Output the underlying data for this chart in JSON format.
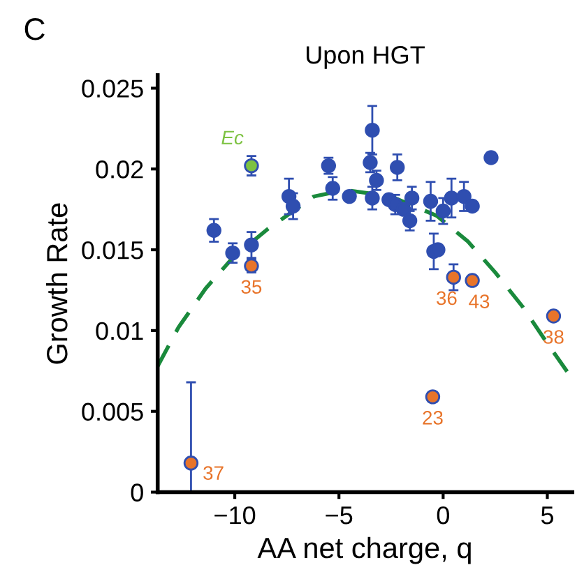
{
  "chart_data": {
    "type": "scatter",
    "title": "Upon HGT",
    "xlabel": "AA net charge, q",
    "ylabel": "Growth Rate",
    "annotations": [
      "C",
      {
        "text": "Ec",
        "x": -9.2,
        "y": 0.0202
      },
      {
        "text": "35",
        "x": -9.2,
        "y": 0.014
      },
      {
        "text": "37",
        "x": -12.1,
        "y": 0.0018
      },
      {
        "text": "23",
        "x": -0.5,
        "y": 0.0059
      },
      {
        "text": "36",
        "x": 0.5,
        "y": 0.0133
      },
      {
        "text": "43",
        "x": 1.4,
        "y": 0.0131
      },
      {
        "text": "38",
        "x": 5.3,
        "y": 0.0109
      }
    ],
    "series": [
      {
        "type": "line",
        "color": "#1a8a3c",
        "line_style": "dashed",
        "marker": "none",
        "x": [
          -13.7,
          -12.7,
          -11.4,
          -10.1,
          -8.4,
          -6.2,
          -4.7,
          -2.5,
          -0.3,
          1.2,
          2.5,
          3.8,
          4.9,
          6.2
        ],
        "values": [
          0.0078,
          0.0102,
          0.0126,
          0.0145,
          0.0163,
          0.0183,
          0.0187,
          0.0183,
          0.0171,
          0.0155,
          0.0136,
          0.0115,
          0.0094,
          0.007
        ]
      },
      {
        "color": "#2f4eb0",
        "x": [
          -11.0,
          -10.1,
          -9.2,
          -7.4,
          -7.2,
          -5.5,
          -5.3,
          -4.5,
          -3.4,
          -3.5,
          -3.2,
          -3.4,
          -2.2,
          -2.6,
          -2.3,
          -1.9,
          -1.6,
          -1.5,
          -0.6,
          0.0,
          0.4,
          1.0,
          1.4,
          -0.45,
          -0.25,
          2.3
        ],
        "values": [
          0.0162,
          0.0148,
          0.0153,
          0.0183,
          0.0177,
          0.0202,
          0.0188,
          0.0183,
          0.0224,
          0.0204,
          0.0193,
          0.0182,
          0.0201,
          0.0181,
          0.0178,
          0.0175,
          0.0168,
          0.0182,
          0.018,
          0.0174,
          0.0182,
          0.0183,
          0.0177,
          0.0149,
          0.015,
          0.0207
        ],
        "errors": [
          0.0007,
          0.0006,
          0.0008,
          0.0011,
          0.0008,
          0.0005,
          0.0007,
          null,
          0.0015,
          0.0006,
          0.0006,
          0.0007,
          0.0008,
          null,
          0.0006,
          null,
          0.0006,
          0.0007,
          0.0012,
          0.0008,
          0.0012,
          0.0009,
          null,
          0.0011,
          null,
          0.0003
        ]
      },
      {
        "color": "#e8742a",
        "x": [
          -9.2,
          -12.1,
          -0.5,
          0.5,
          1.4,
          5.3
        ],
        "values": [
          0.014,
          0.0018,
          0.0059,
          0.0133,
          0.0131,
          0.0109
        ],
        "errors": [
          0.0004,
          [
            0.0,
            0.0068
          ],
          0.0003,
          0.0008,
          null,
          null
        ]
      },
      {
        "color": "#7dc242",
        "x": [
          -9.2
        ],
        "values": [
          0.0202
        ],
        "errors": [
          0.0006
        ]
      }
    ],
    "marker": "circle",
    "grid": false,
    "legend": false,
    "xlim": [
      -13.7,
      6.2
    ],
    "ylim": [
      0,
      0.0258
    ],
    "xticks": [
      {
        "value": -10,
        "label": "−10"
      },
      {
        "value": -5,
        "label": "−5"
      },
      0,
      5
    ],
    "yticks": [
      0,
      0.005,
      0.01,
      0.015,
      0.02,
      0.025
    ]
  }
}
